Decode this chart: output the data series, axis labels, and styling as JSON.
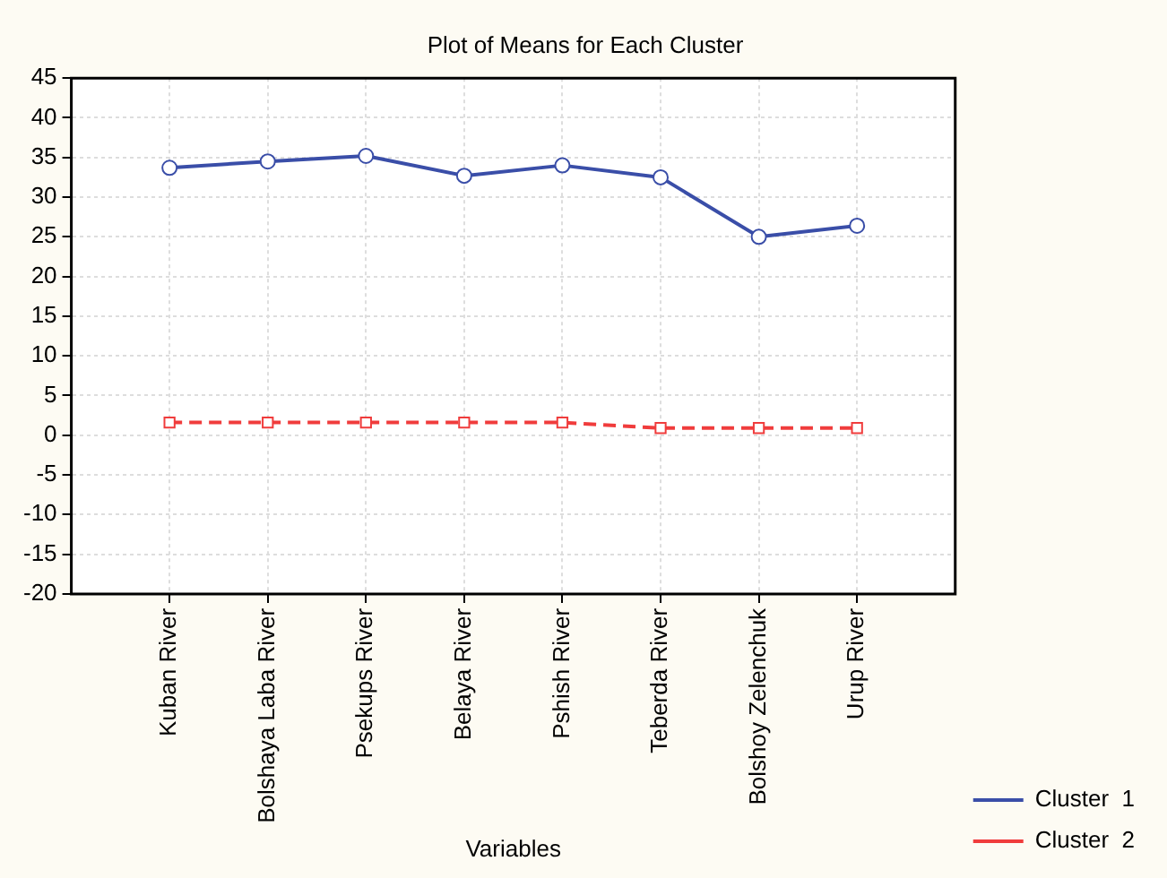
{
  "chart_data": {
    "type": "line",
    "title": "Plot of Means for Each Cluster",
    "xlabel": "Variables",
    "categories": [
      "Kuban River",
      "Bolshaya Laba River",
      "Psekups River",
      "Belaya River",
      "Pshish River",
      "Teberda River",
      "Bolshoy Zelenchuk",
      "Urup River"
    ],
    "series": [
      {
        "name": "Cluster  1",
        "color": "#3a4ea8",
        "marker": "circle",
        "line_style": "solid",
        "values": [
          33.7,
          34.5,
          35.2,
          32.7,
          34.0,
          32.5,
          25.0,
          26.4
        ]
      },
      {
        "name": "Cluster  2",
        "color": "#f03c3c",
        "marker": "square",
        "line_style": "dashed",
        "values": [
          1.6,
          1.6,
          1.6,
          1.6,
          1.6,
          0.9,
          0.9,
          0.9
        ]
      }
    ],
    "ylim": [
      -20,
      45
    ],
    "yticks": [
      -20,
      -15,
      -10,
      -5,
      0,
      5,
      10,
      15,
      20,
      25,
      30,
      35,
      40,
      45
    ],
    "grid": true,
    "legend": "bottom right"
  }
}
